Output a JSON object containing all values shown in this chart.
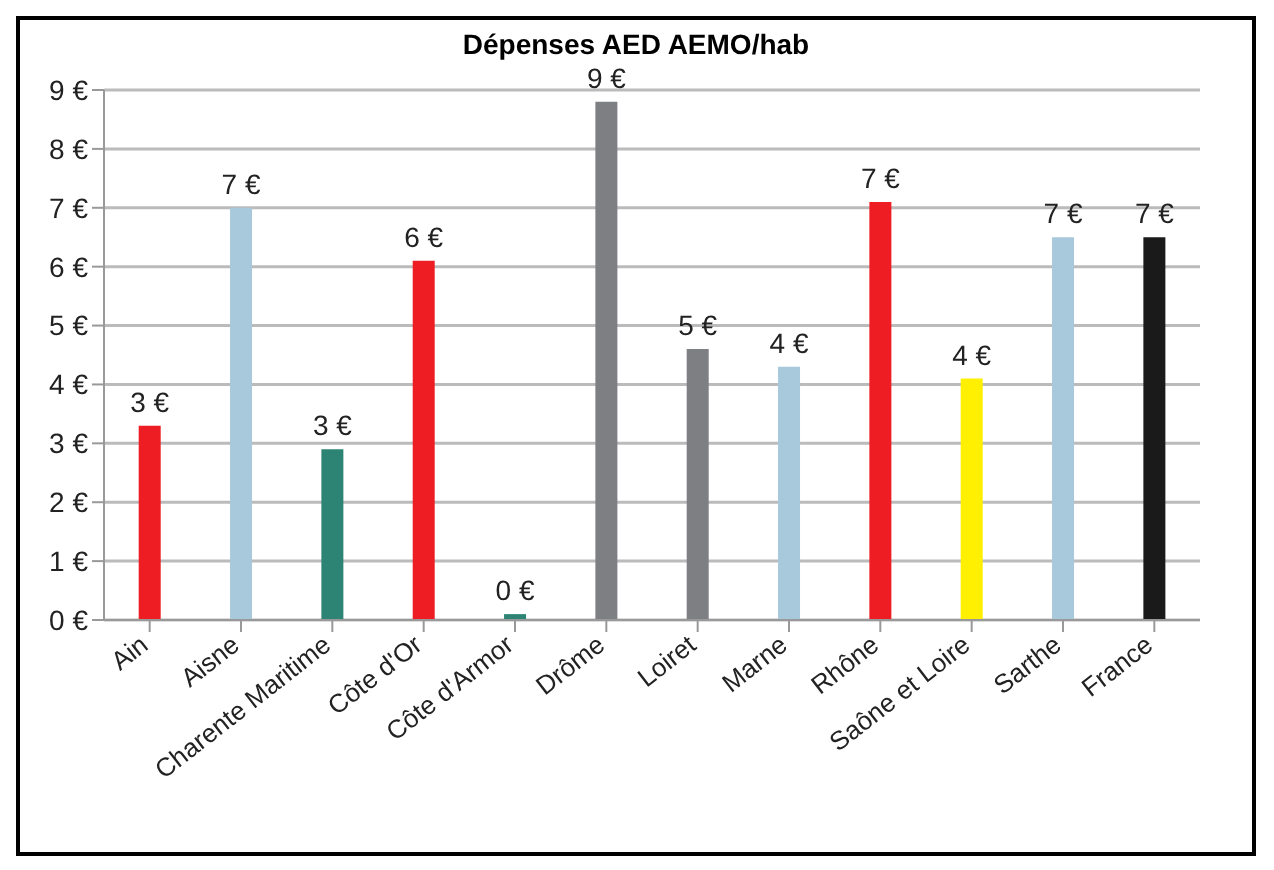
{
  "chart_data": {
    "type": "bar",
    "title": "Dépenses AED AEMO/hab",
    "categories": [
      "Ain",
      "Aisne",
      "Charente Maritime",
      "Côte d'Or",
      "Côte d'Armor",
      "Drôme",
      "Loiret",
      "Marne",
      "Rhône",
      "Saône et Loire",
      "Sarthe",
      "France"
    ],
    "values": [
      3.3,
      7.0,
      2.9,
      6.1,
      0.1,
      8.8,
      4.6,
      4.3,
      7.1,
      4.1,
      6.5,
      6.5
    ],
    "colors": [
      "#ee1c23",
      "#a8c8dc",
      "#2e8474",
      "#ee1c23",
      "#2e8474",
      "#7d7f82",
      "#7d7f82",
      "#a8c8dc",
      "#ee1c23",
      "#ffef00",
      "#a8c8dc",
      "#1a1a1a"
    ],
    "value_labels": [
      "3 €",
      "7 €",
      "3 €",
      "6 €",
      "0 €",
      "9 €",
      "5 €",
      "4 €",
      "7 €",
      "4 €",
      "7 €",
      "7 €"
    ],
    "ylim": [
      0,
      9
    ],
    "yticks": [
      {
        "value": 0,
        "label": "0 €"
      },
      {
        "value": 1,
        "label": "1 €"
      },
      {
        "value": 2,
        "label": "2 €"
      },
      {
        "value": 3,
        "label": "3 €"
      },
      {
        "value": 4,
        "label": "4 €"
      },
      {
        "value": 5,
        "label": "5 €"
      },
      {
        "value": 6,
        "label": "6 €"
      },
      {
        "value": 7,
        "label": "7 €"
      },
      {
        "value": 8,
        "label": "8 €"
      },
      {
        "value": 9,
        "label": "9 €"
      }
    ],
    "grid": "y",
    "legend": false
  }
}
